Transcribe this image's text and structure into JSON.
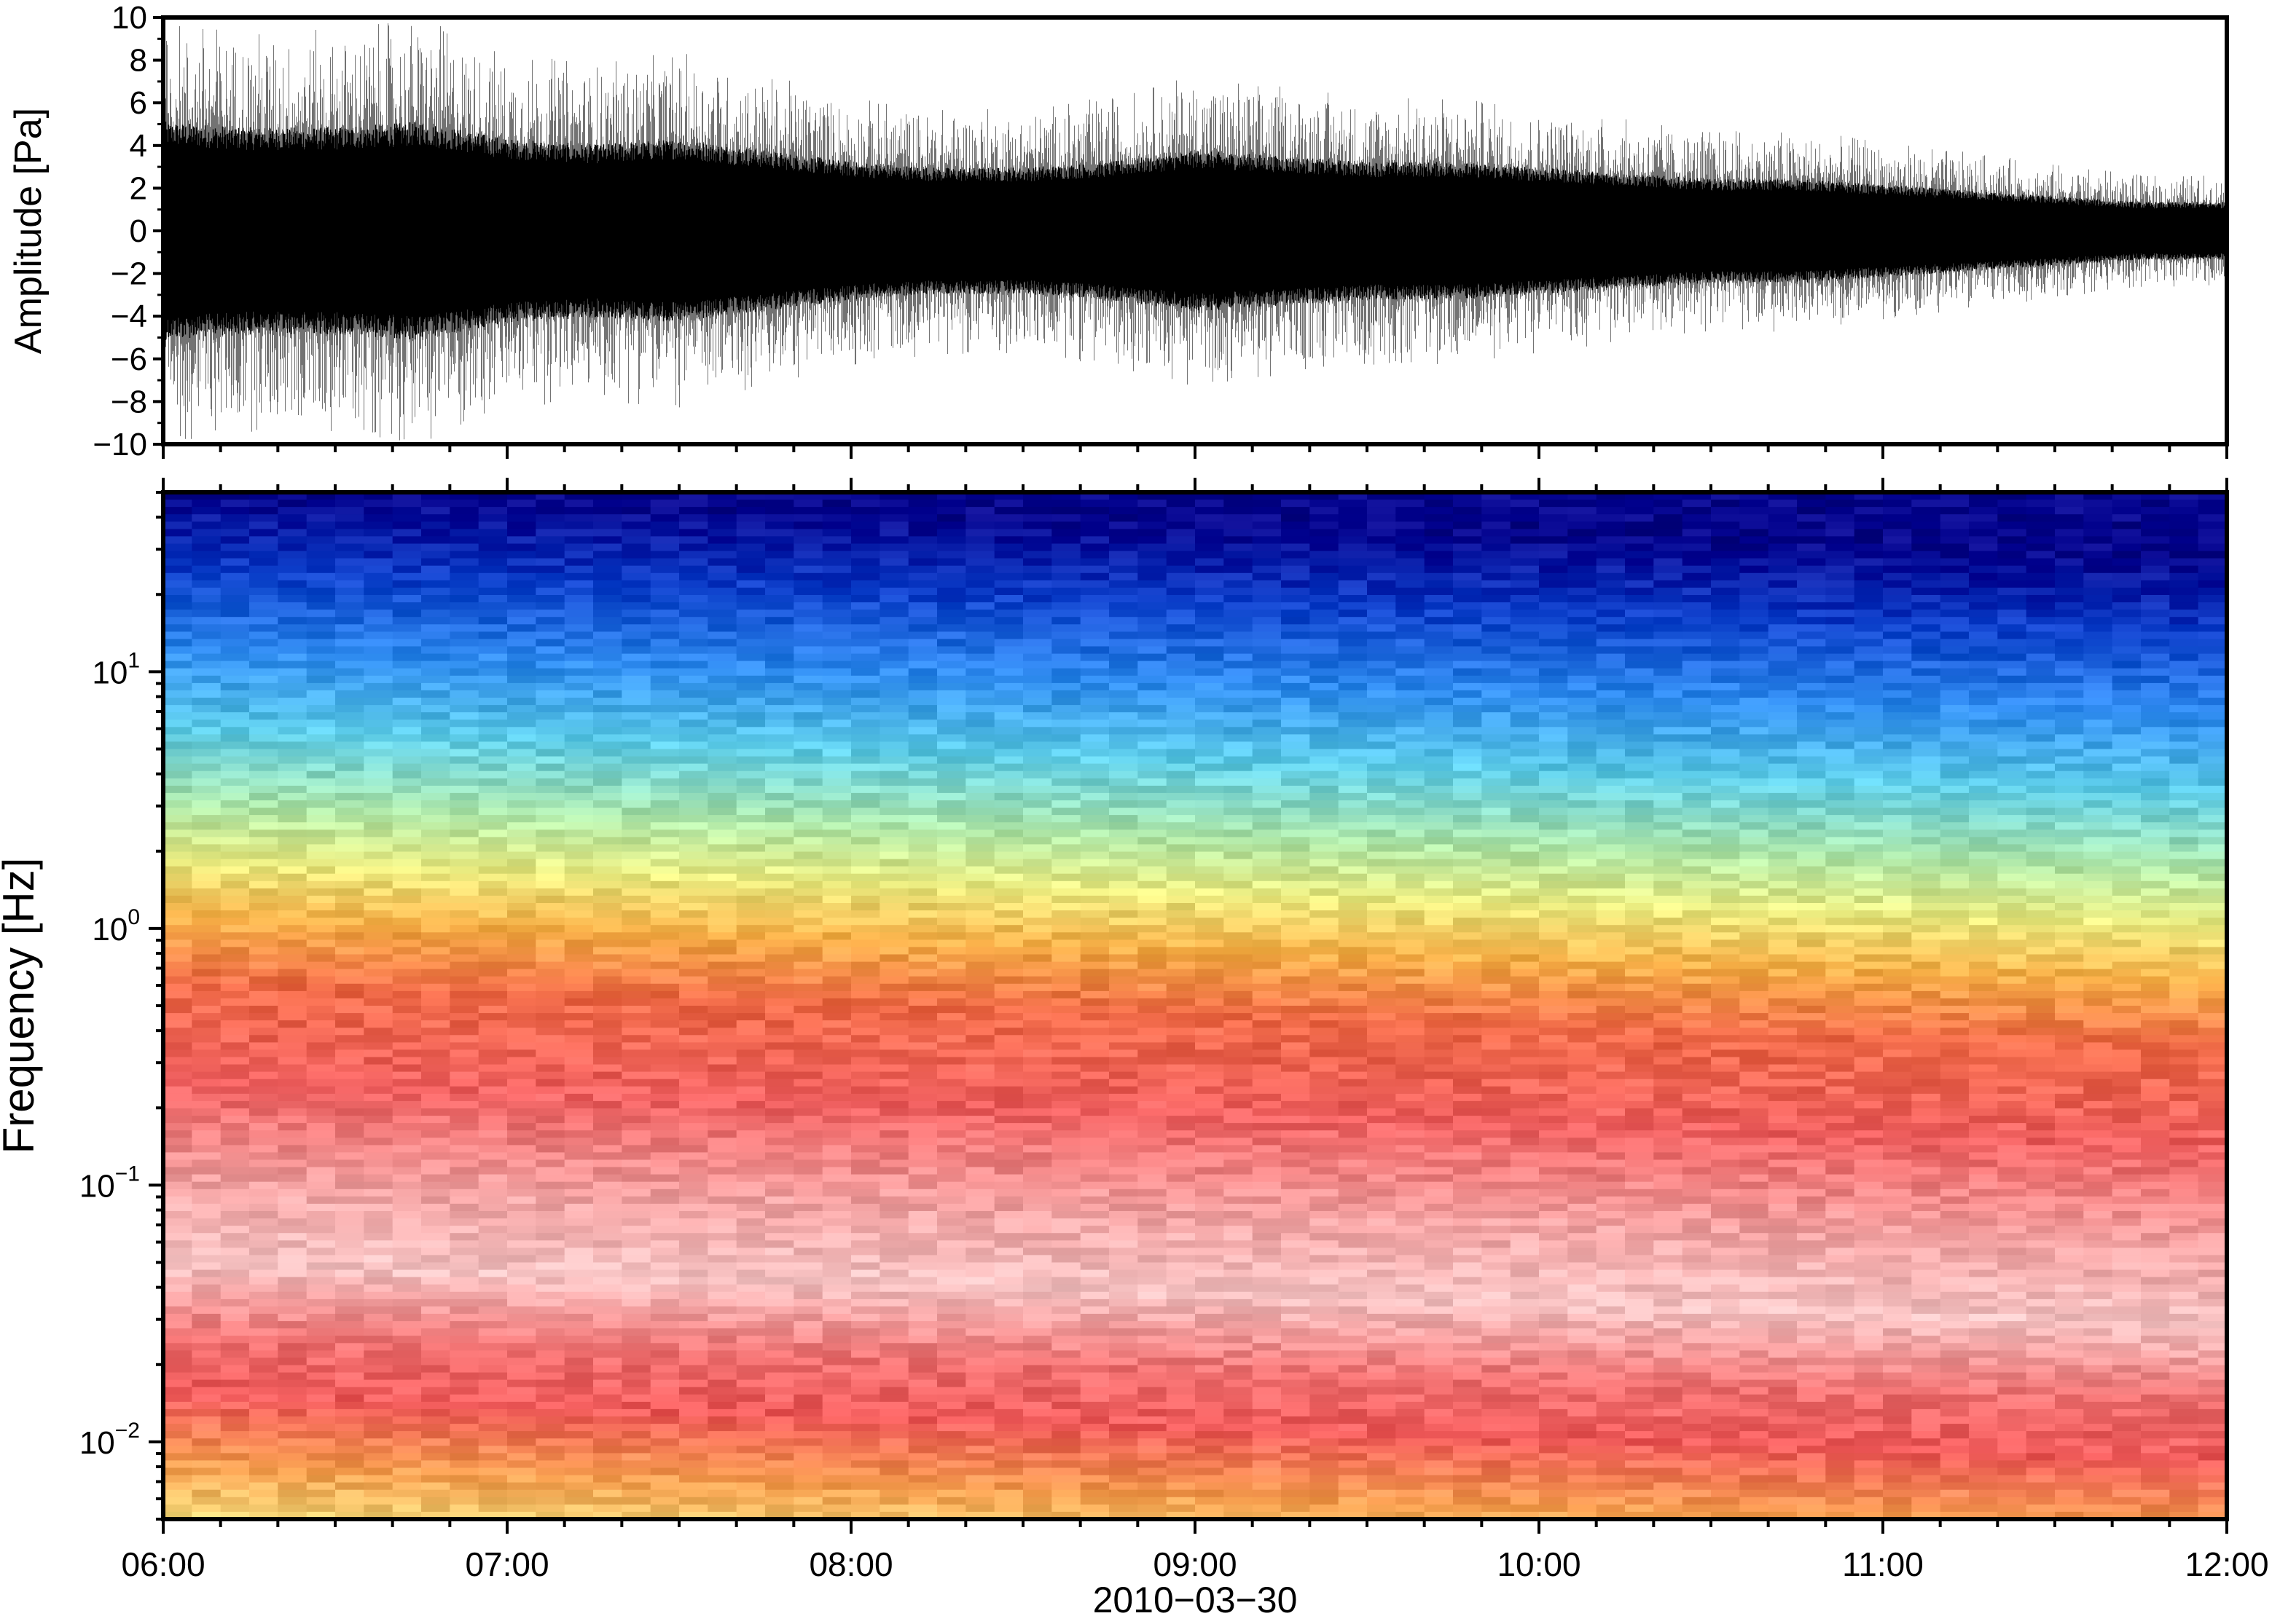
{
  "chart_data": [
    {
      "type": "line",
      "title": "",
      "xlabel": "",
      "ylabel": "Amplitude [Pa]",
      "xlim": [
        "06:00",
        "12:00"
      ],
      "ylim": [
        -10,
        10
      ],
      "y_ticks": [
        "−10",
        "−8",
        "−6",
        "−4",
        "−2",
        "0",
        "2",
        "4",
        "6",
        "8",
        "10"
      ],
      "grid": false,
      "series": [
        {
          "x": [
            "06:00",
            "06:15",
            "06:30",
            "06:45",
            "07:00",
            "07:15",
            "07:30",
            "07:45",
            "08:00",
            "08:15",
            "08:30",
            "08:45",
            "09:00",
            "09:15",
            "09:30",
            "09:45",
            "10:00",
            "10:15",
            "10:30",
            "10:45",
            "11:00",
            "11:15",
            "11:30",
            "11:45",
            "12:00"
          ],
          "envelope_max": [
            9.5,
            9.0,
            9.0,
            9.5,
            8.0,
            7.5,
            8.0,
            7.0,
            6.0,
            5.5,
            5.5,
            6.0,
            7.0,
            6.5,
            6.0,
            6.0,
            5.5,
            5.0,
            4.5,
            4.5,
            4.0,
            3.5,
            3.0,
            2.5,
            2.5
          ],
          "envelope_min": [
            -9.5,
            -9.0,
            -9.0,
            -9.5,
            -8.0,
            -7.5,
            -8.0,
            -7.0,
            -6.0,
            -5.5,
            -5.5,
            -6.0,
            -7.0,
            -6.5,
            -6.0,
            -6.0,
            -5.5,
            -5.0,
            -4.5,
            -4.5,
            -4.0,
            -3.5,
            -3.0,
            -2.5,
            -2.5
          ],
          "color": "#000000"
        }
      ]
    },
    {
      "type": "heatmap",
      "title": "",
      "xlabel": "2010−03−30",
      "ylabel": "Frequency [Hz]",
      "x_ticks": [
        "06:00",
        "07:00",
        "08:00",
        "09:00",
        "10:00",
        "11:00",
        "12:00"
      ],
      "y_scale": "log",
      "ylim": [
        0.005,
        50
      ],
      "y_ticks": [
        {
          "value": 0.01,
          "base": "10",
          "exp": "−2"
        },
        {
          "value": 0.1,
          "base": "10",
          "exp": "−1"
        },
        {
          "value": 1,
          "base": "10",
          "exp": "0"
        },
        {
          "value": 10,
          "base": "10",
          "exp": "1"
        }
      ],
      "colormap": [
        "#00008b",
        "#0040d0",
        "#2f8cf0",
        "#5cc8f0",
        "#a8e8c0",
        "#e8ec88",
        "#f8c050",
        "#f8783c",
        "#f05454",
        "#f4a0a0",
        "#fce0e0"
      ],
      "color_by_frequency": [
        {
          "freq": 50,
          "color": "#00008b"
        },
        {
          "freq": 25,
          "color": "#0a3cc8"
        },
        {
          "freq": 12,
          "color": "#2f8cf0"
        },
        {
          "freq": 6,
          "color": "#5ccce8"
        },
        {
          "freq": 3,
          "color": "#b0e8a8"
        },
        {
          "freq": 1.8,
          "color": "#ecec80"
        },
        {
          "freq": 1.1,
          "color": "#f8b048"
        },
        {
          "freq": 0.6,
          "color": "#f06a48"
        },
        {
          "freq": 0.25,
          "color": "#f06060"
        },
        {
          "freq": 0.1,
          "color": "#f4a4a4"
        },
        {
          "freq": 0.05,
          "color": "#f8c4c4"
        },
        {
          "freq": 0.025,
          "color": "#f07070"
        },
        {
          "freq": 0.015,
          "color": "#f05a5a"
        },
        {
          "freq": 0.008,
          "color": "#f8a050"
        },
        {
          "freq": 0.005,
          "color": "#f4d878"
        }
      ],
      "grid": false
    }
  ]
}
